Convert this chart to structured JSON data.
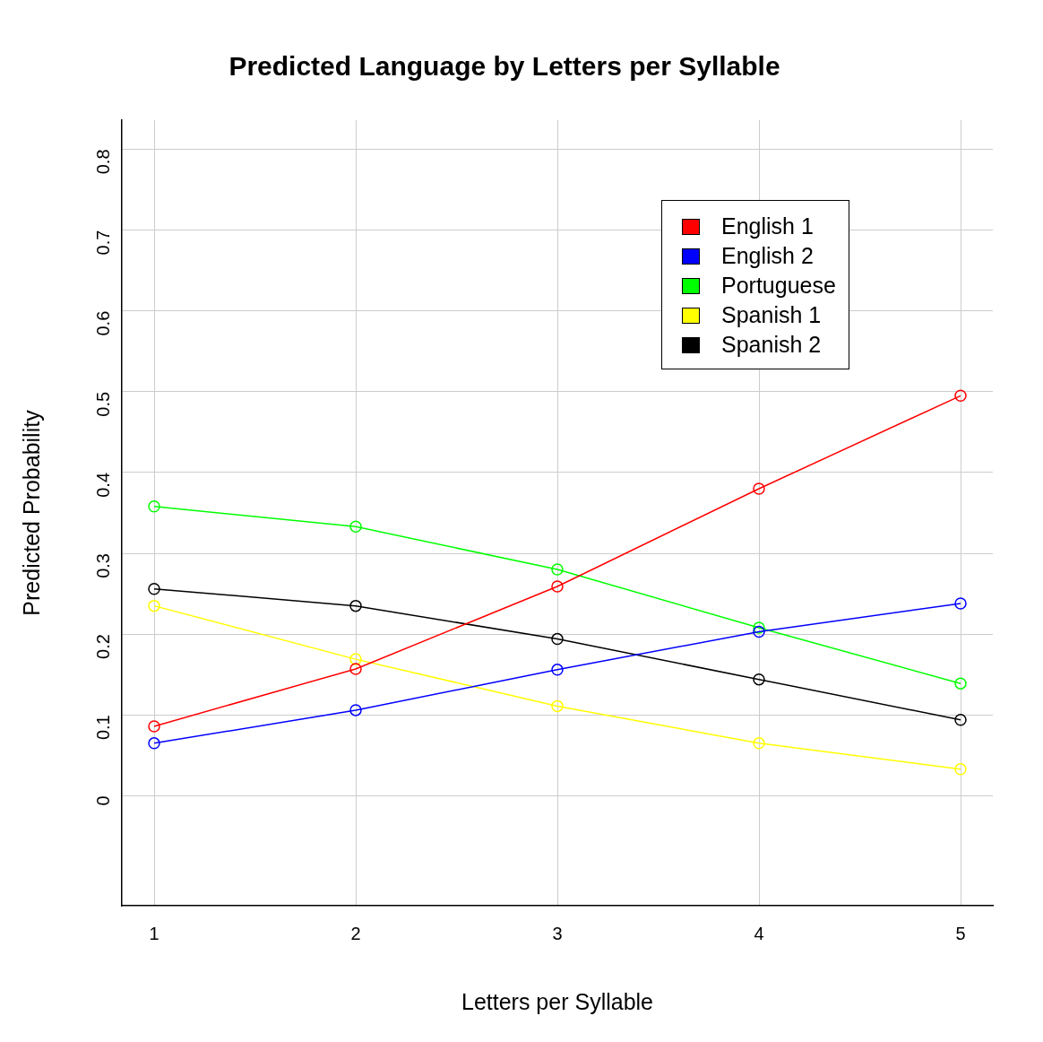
{
  "chart_data": {
    "type": "line",
    "title": "Predicted Language by Letters per Syllable",
    "xlabel": "Letters per Syllable",
    "ylabel": "Predicted Probability",
    "x": [
      1,
      2,
      3,
      4,
      5
    ],
    "series": [
      {
        "name": "English 1",
        "color": "#ff0000",
        "values": [
          0.086,
          0.157,
          0.259,
          0.38,
          0.495
        ]
      },
      {
        "name": "English 2",
        "color": "#0000ff",
        "values": [
          0.065,
          0.106,
          0.156,
          0.203,
          0.238
        ]
      },
      {
        "name": "Portuguese",
        "color": "#00ff00",
        "values": [
          0.358,
          0.333,
          0.28,
          0.208,
          0.139
        ]
      },
      {
        "name": "Spanish 1",
        "color": "#ffff00",
        "values": [
          0.235,
          0.169,
          0.111,
          0.065,
          0.033
        ]
      },
      {
        "name": "Spanish 2",
        "color": "#000000",
        "values": [
          0.256,
          0.235,
          0.194,
          0.144,
          0.094
        ]
      }
    ],
    "xlim": [
      0.84,
      5.16
    ],
    "xticks": [
      1,
      2,
      3,
      4,
      5
    ],
    "ylim": [
      -0.136,
      0.836
    ],
    "yticks": [
      0,
      0.1,
      0.2,
      0.3,
      0.4,
      0.5,
      0.6,
      0.7,
      0.8
    ],
    "grid": true,
    "legend": "top right",
    "marker": "circle",
    "line_style": "solid"
  }
}
